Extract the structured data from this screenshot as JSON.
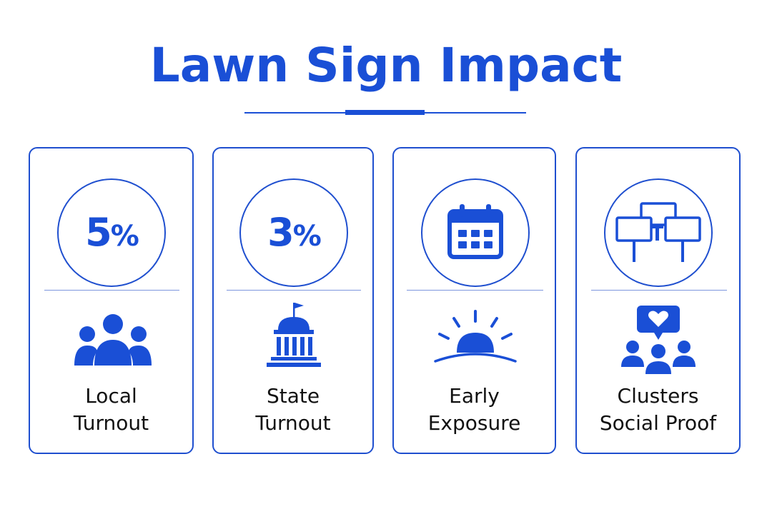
{
  "title": "Lawn Sign Impact",
  "colors": {
    "accent": "#1a4fd6",
    "border": "#1f4fcf",
    "text": "#111111"
  },
  "cards": [
    {
      "stat_number": "5",
      "stat_unit": "%",
      "icon": "group-icon",
      "label_line1": "Local",
      "label_line2": "Turnout"
    },
    {
      "stat_number": "3",
      "stat_unit": "%",
      "icon": "capitol-icon",
      "label_line1": "State",
      "label_line2": "Turnout"
    },
    {
      "top_icon": "calendar-icon",
      "icon": "sunrise-icon",
      "label_line1": "Early",
      "label_line2": "Exposure"
    },
    {
      "top_icon": "signs-cluster-icon",
      "icon": "social-heart-icon",
      "label_line1": "Clusters",
      "label_line2": "Social Proof"
    }
  ]
}
